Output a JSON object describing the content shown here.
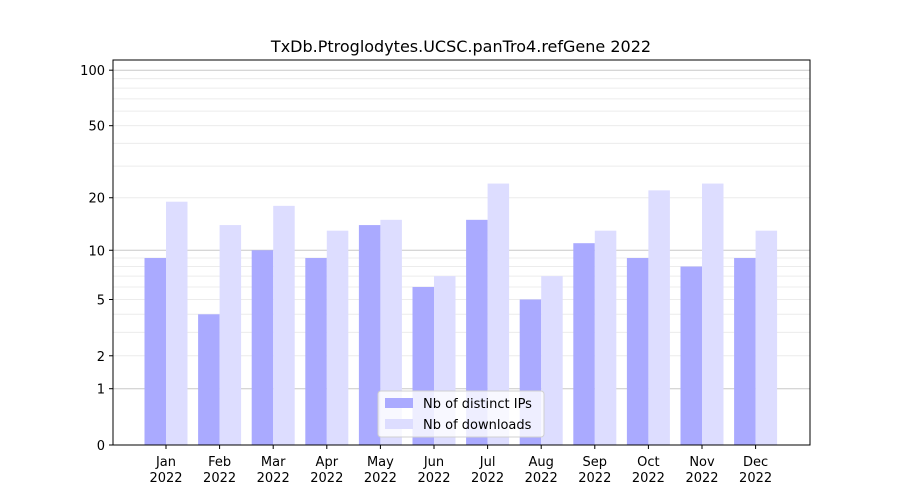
{
  "chart_data": {
    "type": "bar",
    "title": "TxDb.Ptroglodytes.UCSC.panTro4.refGene 2022",
    "xlabel": "",
    "ylabel": "",
    "yscale": "log(1+y)",
    "ylim": [
      0,
      110
    ],
    "yticks": [
      0,
      1,
      2,
      5,
      10,
      20,
      50,
      100
    ],
    "categories": [
      "Jan\n2022",
      "Feb\n2022",
      "Mar\n2022",
      "Apr\n2022",
      "May\n2022",
      "Jun\n2022",
      "Jul\n2022",
      "Aug\n2022",
      "Sep\n2022",
      "Oct\n2022",
      "Nov\n2022",
      "Dec\n2022"
    ],
    "series": [
      {
        "name": "Nb of distinct IPs",
        "color": "#aaaaff",
        "values": [
          9,
          4,
          10,
          9,
          14,
          6,
          15,
          5,
          11,
          9,
          8,
          9
        ]
      },
      {
        "name": "Nb of downloads",
        "color": "#ddddff",
        "values": [
          19,
          14,
          18,
          13,
          15,
          7,
          24,
          7,
          13,
          22,
          24,
          13
        ]
      }
    ],
    "legend": "bottom-center",
    "grid": true
  }
}
